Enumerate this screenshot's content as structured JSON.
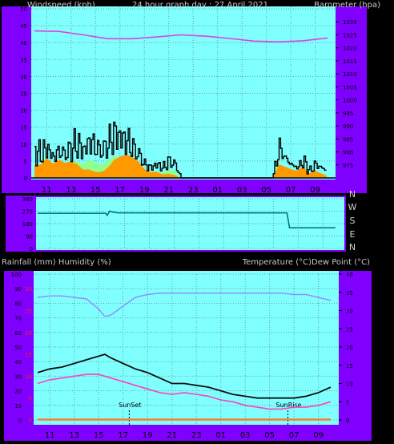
{
  "colors": {
    "background": "#000000",
    "axis_panel": "#8000ff",
    "plot_bg": "#80ffff",
    "grid": "#6aa0a0",
    "windspeed": "#000000",
    "gust_fill": "#ff9900",
    "wind_avg": "#90ff90",
    "barometer": "#e040e0",
    "direction": "#006a7a",
    "temperature": "#101010",
    "dewpoint": "#ff40c0",
    "humidity": "#9090ff",
    "rain": "#ff7a2a",
    "header_text": "#c8c8c8",
    "red_ticks": "#ff2020"
  },
  "header": {
    "left": "Windspeed (kph)",
    "center": "24 hour graph day : 27 April 2021",
    "right": "Barometer (hpa)"
  },
  "middle": {
    "left": "Rainfall (mm)  Humidity (%)",
    "right": "Temperature (°C)Dew Point (°C)"
  },
  "chart_data": [
    {
      "type": "line",
      "title": "Windspeed (kph) / Barometer (hpa)",
      "xlabel": "",
      "x_ticks": [
        "11",
        "13",
        "15",
        "17",
        "19",
        "21",
        "23",
        "01",
        "03",
        "05",
        "07",
        "09"
      ],
      "ylabel": "Windspeed (kph)",
      "ylim": [
        0,
        50
      ],
      "y_ticks": [
        "0",
        "5",
        "10",
        "15",
        "20",
        "25",
        "30",
        "35",
        "40",
        "45",
        "50"
      ],
      "y2label": "Barometer (hpa)",
      "y2lim": [
        970,
        1035
      ],
      "y2_ticks": [
        "975",
        "980",
        "985",
        "990",
        "995",
        "1000",
        "1005",
        "1010",
        "1015",
        "1020",
        "1025",
        "1030"
      ],
      "grid": true,
      "series": [
        {
          "name": "Barometer (hpa)",
          "axis": "right",
          "x": [
            0,
            2,
            4,
            6,
            8,
            10,
            12,
            14,
            16,
            18,
            20,
            22,
            24
          ],
          "values": [
            1026.5,
            1026.3,
            1025,
            1023.5,
            1023.5,
            1024.2,
            1025,
            1024.5,
            1023.6,
            1022.6,
            1022.3,
            1022.7,
            1023.8
          ]
        },
        {
          "name": "Windspeed (kph)",
          "axis": "left",
          "x": [
            0,
            0.5,
            1,
            1.5,
            2,
            2.5,
            3,
            3.5,
            4,
            4.5,
            5,
            5.5,
            6,
            6.5,
            7,
            7.5,
            8,
            8.5,
            9,
            9.5,
            10,
            10.5,
            11,
            11.5,
            12,
            13,
            14,
            15,
            16,
            17,
            18,
            19,
            19.5,
            20,
            20.5,
            21,
            21.5,
            22,
            22.5,
            23,
            23.5,
            24
          ],
          "values": [
            8,
            7,
            9,
            6,
            8,
            7,
            9,
            10,
            8,
            11,
            9,
            8,
            10,
            13,
            12,
            11,
            9,
            7,
            4,
            3,
            4,
            3,
            5,
            4,
            0,
            0,
            0,
            0,
            0,
            0,
            0,
            0,
            0,
            9,
            6,
            4,
            3,
            5,
            2,
            4,
            3,
            2
          ]
        }
      ]
    },
    {
      "type": "line",
      "title": "",
      "xlabel": "",
      "ylabel": "",
      "ylim": [
        0,
        360
      ],
      "y_ticks": [
        "0",
        "90",
        "180",
        "270",
        "360"
      ],
      "y2_ticks": [
        "N",
        "W",
        "S",
        "E",
        "N"
      ],
      "grid": true,
      "series": [
        {
          "name": "",
          "x": [
            0,
            5.5,
            5.6,
            5.8,
            6,
            6.3,
            6.5,
            20.1,
            20.3,
            24
          ],
          "values": [
            255,
            255,
            240,
            270,
            265,
            260,
            258,
            258,
            150,
            150
          ]
        }
      ]
    },
    {
      "type": "line",
      "title": "Rainfall (mm) Humidity (%) / Temperature (°C) Dew Point (°C)",
      "xlabel": "",
      "x_ticks": [
        "11",
        "13",
        "15",
        "17",
        "19",
        "21",
        "23",
        "01",
        "03",
        "05",
        "07",
        "09"
      ],
      "ylabel": "Rainfall (mm)  Humidity (%)",
      "ylim": [
        0,
        100
      ],
      "y_ticks": [
        "0",
        "10",
        "20",
        "30",
        "40",
        "50",
        "60",
        "70",
        "80",
        "90",
        "100"
      ],
      "y_red_ticks": [
        "0",
        "5",
        "10",
        "15",
        "20",
        "25",
        "30"
      ],
      "y2label": "Temperature (°C)Dew Point (°C)",
      "y2lim": [
        0,
        40
      ],
      "y2_ticks": [
        "0",
        "5",
        "10",
        "15",
        "20",
        "25",
        "30",
        "35",
        "40"
      ],
      "grid": true,
      "annotations": [
        {
          "text": "SunSet",
          "x": 7.5
        },
        {
          "text": "SunRise",
          "x": 20.5
        }
      ],
      "series": [
        {
          "name": "Humidity (%)",
          "axis": "left",
          "x": [
            0,
            1,
            2,
            3,
            4,
            5,
            5.5,
            6,
            7,
            8,
            9,
            10,
            12,
            14,
            16,
            18,
            20,
            21,
            22,
            23,
            24
          ],
          "values": [
            84,
            85,
            85,
            84,
            83,
            76,
            71,
            72,
            78,
            84,
            86,
            87,
            87,
            87,
            87,
            87,
            87,
            86,
            86,
            84,
            82
          ]
        },
        {
          "name": "Temperature (°C)",
          "axis": "right",
          "x": [
            0,
            1,
            2,
            3,
            4,
            5,
            5.5,
            6,
            7,
            8,
            9,
            10,
            11,
            12,
            13,
            14,
            15,
            16,
            17,
            18,
            19,
            20,
            21,
            22,
            23,
            24
          ],
          "values": [
            13,
            14,
            14.5,
            15.5,
            16.5,
            17.5,
            18,
            17,
            15.5,
            14,
            13,
            11.5,
            10,
            10,
            9.5,
            9,
            8,
            7,
            6.5,
            6,
            6,
            6,
            6,
            6.5,
            7.5,
            9
          ]
        },
        {
          "name": "Dew Point (°C)",
          "axis": "right",
          "x": [
            0,
            1,
            2,
            3,
            4,
            5,
            6,
            7,
            8,
            9,
            10,
            11,
            12,
            13,
            14,
            15,
            16,
            17,
            18,
            19,
            20,
            21,
            22,
            23,
            24
          ],
          "values": [
            10,
            11,
            11.5,
            12,
            12.5,
            12.5,
            11.5,
            10.5,
            9.5,
            8.5,
            7.5,
            7,
            7.5,
            7,
            6.5,
            5.5,
            5,
            4,
            3.5,
            3,
            3,
            3.5,
            3.5,
            4,
            5
          ]
        },
        {
          "name": "Rainfall (mm)",
          "axis": "left",
          "x": [
            0,
            24
          ],
          "values": [
            0.3,
            0.3
          ]
        }
      ]
    }
  ]
}
